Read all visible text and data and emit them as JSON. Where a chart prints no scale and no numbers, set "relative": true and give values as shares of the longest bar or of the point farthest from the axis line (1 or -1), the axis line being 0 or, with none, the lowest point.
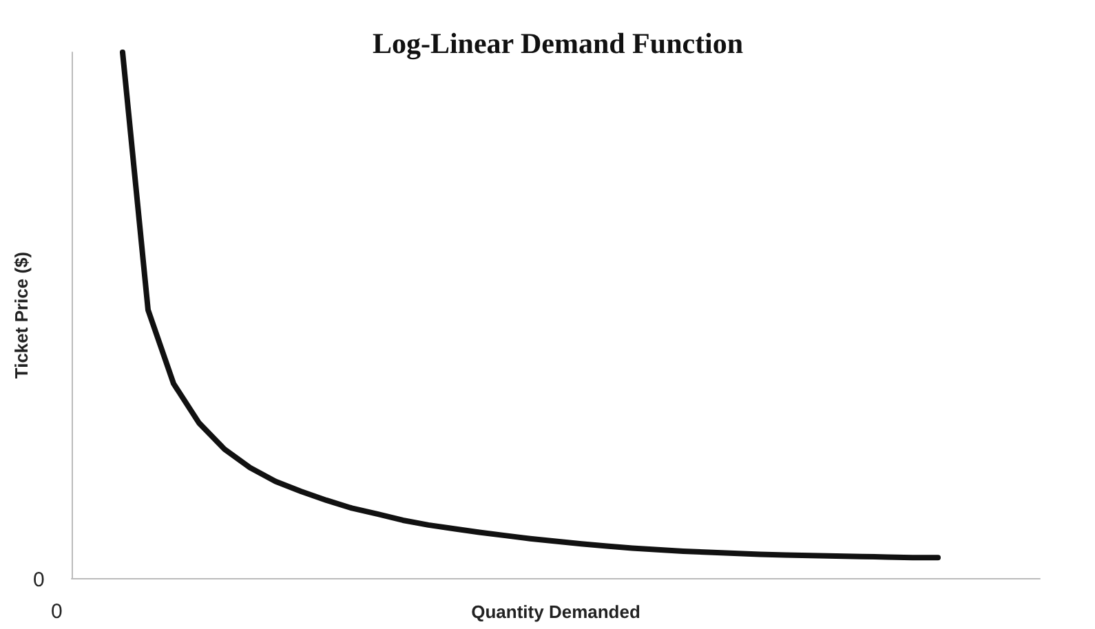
{
  "chart_data": {
    "type": "line",
    "title": "Log-Linear Demand Function",
    "xlabel": "Quantity Demanded",
    "ylabel": "Ticket Price ($)",
    "relative": true,
    "annotations": [
      "0",
      "0"
    ],
    "grid": false,
    "marker": "none",
    "line_style": "solid",
    "categories": [
      null,
      null,
      null,
      null,
      null,
      null,
      null,
      null,
      null,
      null,
      null,
      null,
      null,
      null,
      null,
      null,
      null,
      null,
      null,
      null,
      null,
      null,
      null,
      null,
      null,
      null,
      null,
      null,
      null,
      null,
      null,
      null,
      null,
      null,
      null,
      null,
      null,
      null,
      null
    ],
    "series": [
      {
        "color": "#111111",
        "values": [
          null,
          null,
          1.0,
          0.51,
          0.37,
          0.295,
          0.245,
          0.21,
          0.184,
          0.165,
          0.148,
          0.133,
          0.122,
          0.11,
          0.101,
          0.094,
          0.087,
          0.081,
          0.075,
          0.07,
          0.065,
          0.061,
          0.057,
          0.054,
          0.051,
          0.049,
          0.047,
          0.045,
          0.044,
          0.043,
          0.042,
          0.041,
          0.04,
          0.039,
          0.039,
          null,
          null,
          null,
          null
        ]
      }
    ]
  }
}
